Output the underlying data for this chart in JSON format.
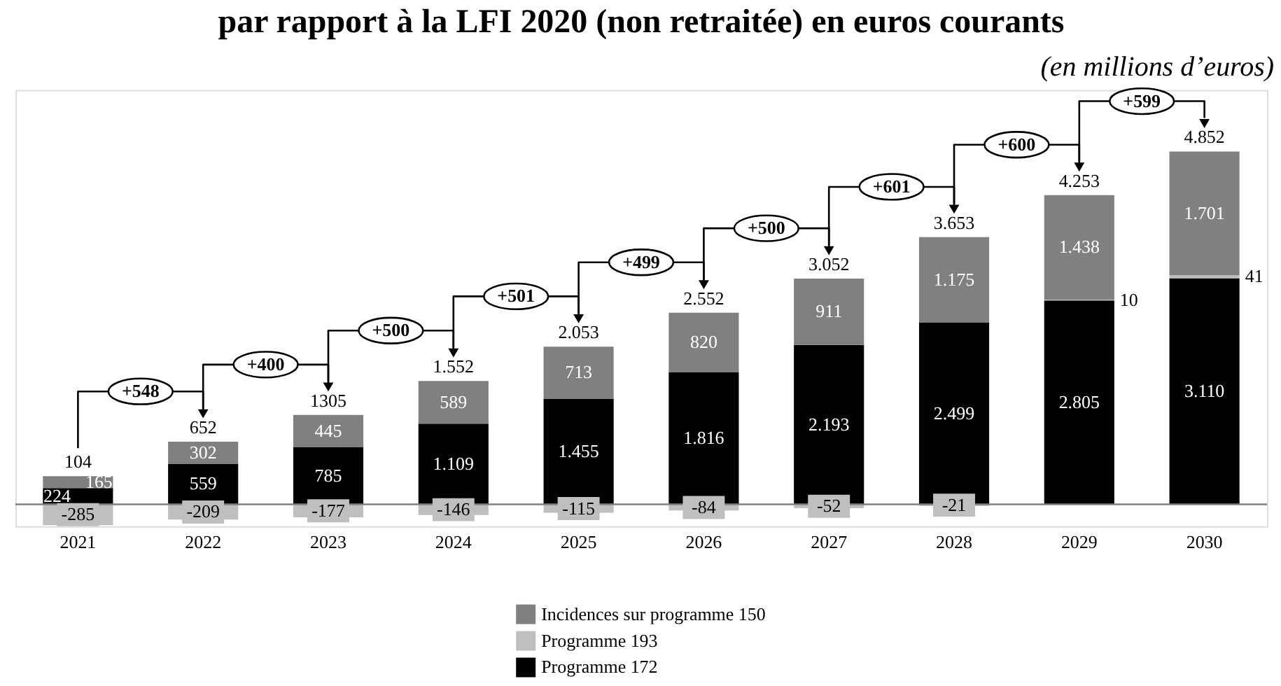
{
  "chart_data": {
    "type": "bar",
    "title": "par rapport à la LFI 2020 (non retraitée) en euros courants",
    "subtitle": "(en millions d’euros)",
    "categories": [
      "2021",
      "2022",
      "2023",
      "2024",
      "2025",
      "2026",
      "2027",
      "2028",
      "2029",
      "2030"
    ],
    "stacked": true,
    "series": [
      {
        "name": "Programme 172",
        "color": "#000000",
        "values": [
          224,
          559,
          785,
          1109,
          1455,
          1816,
          2193,
          2499,
          2805,
          3110
        ],
        "value_labels": [
          "224",
          "559",
          "785",
          "1.109",
          "1.455",
          "1.816",
          "2.193",
          "2.499",
          "2.805",
          "3.110"
        ]
      },
      {
        "name": "Programme 193",
        "color": "#bfbfbf",
        "values": [
          -285,
          -209,
          -177,
          -146,
          -115,
          -84,
          -52,
          -21,
          10,
          41
        ],
        "value_labels": [
          "-285",
          "-209",
          "-177",
          "-146",
          "-115",
          "-84",
          "-52",
          "-21",
          "10",
          "41"
        ]
      },
      {
        "name": "Incidences sur programme 150",
        "color": "#808080",
        "values": [
          165,
          302,
          445,
          589,
          713,
          820,
          911,
          1175,
          1438,
          1701
        ],
        "value_labels": [
          "165",
          "302",
          "445",
          "589",
          "713",
          "820",
          "911",
          "1.175",
          "1.438",
          "1.701"
        ]
      }
    ],
    "totals": [
      "104",
      "652",
      null,
      "1.552",
      "2.053",
      "2.552",
      "3.052",
      "3.653",
      "4.253",
      "4.852"
    ],
    "annotations": [
      "+548",
      "+400",
      "+500",
      "+501",
      "+499",
      "+500",
      "+601",
      "+600",
      "+599",
      {
        "text": "1305",
        "x": "2023",
        "y": 1230
      }
    ],
    "ref_lines": [
      {
        "axis": "y",
        "value": 0,
        "color": "#808080"
      }
    ],
    "ylim": [
      -300,
      5700
    ],
    "tick_labels": "x",
    "legend": "bottom"
  }
}
